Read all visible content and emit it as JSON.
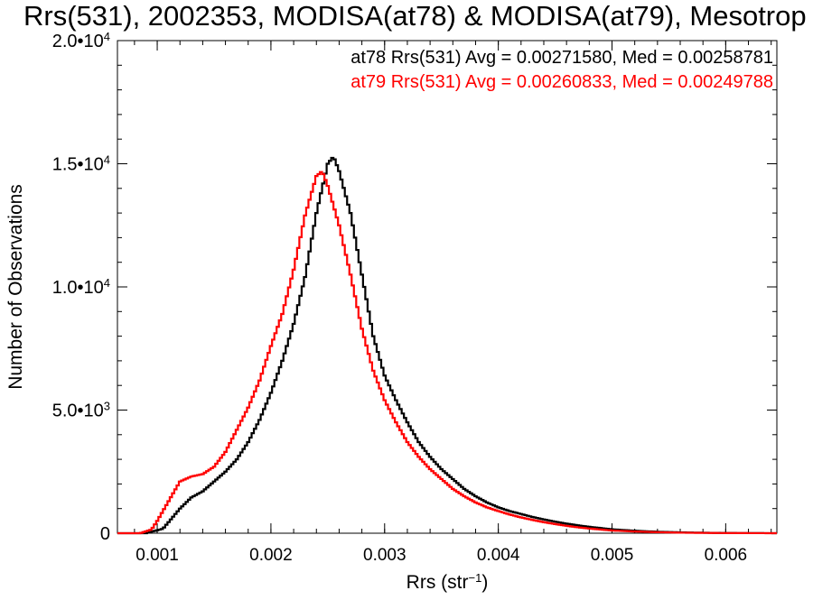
{
  "chart_data": {
    "type": "line",
    "step": true,
    "title": "Rrs(531), 2002353, MODISA(at78) & MODISA(at79), Mesotrop",
    "xlabel_main": "Rrs (str",
    "xlabel_sup": "−1",
    "xlabel_close": ")",
    "ylabel": "Number of Observations",
    "xlim": [
      0.00065,
      0.00645
    ],
    "ylim": [
      0,
      20000
    ],
    "x_ticks": [
      {
        "value": 0.001,
        "label": "0.001"
      },
      {
        "value": 0.002,
        "label": "0.002"
      },
      {
        "value": 0.003,
        "label": "0.003"
      },
      {
        "value": 0.004,
        "label": "0.004"
      },
      {
        "value": 0.005,
        "label": "0.005"
      },
      {
        "value": 0.006,
        "label": "0.006"
      }
    ],
    "y_ticks": [
      {
        "value": 0,
        "mant": "0",
        "exp": ""
      },
      {
        "value": 5000,
        "mant": "5.0•10",
        "exp": "3"
      },
      {
        "value": 10000,
        "mant": "1.0•10",
        "exp": "4"
      },
      {
        "value": 15000,
        "mant": "1.5•10",
        "exp": "4"
      },
      {
        "value": 20000,
        "mant": "2.0•10",
        "exp": "4"
      }
    ],
    "x_minor_step": 0.0002,
    "y_minor_step": 1000,
    "legend_position": "top-right",
    "annotations": [
      {
        "text": "at78 Rrs(531) Avg = 0.00271580, Med = 0.00258781",
        "color": "#000000"
      },
      {
        "text": "at79 Rrs(531) Avg = 0.00260833, Med = 0.00249788",
        "color": "#ff0000"
      }
    ],
    "series": [
      {
        "name": "at78",
        "color": "#000000",
        "points": [
          [
            0.00065,
            0
          ],
          [
            0.0009,
            0
          ],
          [
            0.00105,
            180
          ],
          [
            0.0011,
            450
          ],
          [
            0.0012,
            1000
          ],
          [
            0.0013,
            1450
          ],
          [
            0.0014,
            1700
          ],
          [
            0.0015,
            2100
          ],
          [
            0.0016,
            2500
          ],
          [
            0.0017,
            3000
          ],
          [
            0.0018,
            3700
          ],
          [
            0.0019,
            4600
          ],
          [
            0.002,
            5700
          ],
          [
            0.0021,
            7000
          ],
          [
            0.0022,
            8500
          ],
          [
            0.0023,
            10400
          ],
          [
            0.0024,
            13000
          ],
          [
            0.0025,
            15000
          ],
          [
            0.00255,
            15300
          ],
          [
            0.0026,
            14700
          ],
          [
            0.0027,
            13000
          ],
          [
            0.0028,
            10500
          ],
          [
            0.0029,
            8000
          ],
          [
            0.003,
            6400
          ],
          [
            0.0031,
            5400
          ],
          [
            0.0032,
            4500
          ],
          [
            0.0033,
            3700
          ],
          [
            0.0034,
            3100
          ],
          [
            0.0035,
            2600
          ],
          [
            0.0036,
            2200
          ],
          [
            0.0037,
            1800
          ],
          [
            0.0038,
            1500
          ],
          [
            0.0039,
            1250
          ],
          [
            0.004,
            1050
          ],
          [
            0.0041,
            900
          ],
          [
            0.0042,
            780
          ],
          [
            0.0043,
            660
          ],
          [
            0.0044,
            560
          ],
          [
            0.0045,
            470
          ],
          [
            0.0046,
            390
          ],
          [
            0.0047,
            320
          ],
          [
            0.0048,
            260
          ],
          [
            0.0049,
            210
          ],
          [
            0.005,
            160
          ],
          [
            0.0052,
            100
          ],
          [
            0.0054,
            60
          ],
          [
            0.0056,
            35
          ],
          [
            0.0058,
            20
          ],
          [
            0.006,
            10
          ],
          [
            0.0062,
            5
          ],
          [
            0.0064,
            2
          ],
          [
            0.00645,
            0
          ]
        ]
      },
      {
        "name": "at79",
        "color": "#ff0000",
        "points": [
          [
            0.00065,
            0
          ],
          [
            0.00085,
            0
          ],
          [
            0.00095,
            150
          ],
          [
            0.001,
            500
          ],
          [
            0.0011,
            1300
          ],
          [
            0.0012,
            2100
          ],
          [
            0.0013,
            2300
          ],
          [
            0.0014,
            2400
          ],
          [
            0.0015,
            2700
          ],
          [
            0.0016,
            3300
          ],
          [
            0.0017,
            4200
          ],
          [
            0.0018,
            5100
          ],
          [
            0.0019,
            6200
          ],
          [
            0.002,
            7600
          ],
          [
            0.0021,
            8900
          ],
          [
            0.0022,
            10700
          ],
          [
            0.0023,
            12900
          ],
          [
            0.0024,
            14500
          ],
          [
            0.00245,
            14700
          ],
          [
            0.0025,
            14100
          ],
          [
            0.0026,
            12500
          ],
          [
            0.0027,
            10500
          ],
          [
            0.0028,
            8300
          ],
          [
            0.0029,
            6600
          ],
          [
            0.003,
            5400
          ],
          [
            0.0031,
            4500
          ],
          [
            0.0032,
            3700
          ],
          [
            0.0033,
            3100
          ],
          [
            0.0034,
            2600
          ],
          [
            0.0035,
            2200
          ],
          [
            0.0036,
            1800
          ],
          [
            0.0037,
            1500
          ],
          [
            0.0038,
            1250
          ],
          [
            0.0039,
            1050
          ],
          [
            0.004,
            900
          ],
          [
            0.0041,
            760
          ],
          [
            0.0042,
            640
          ],
          [
            0.0043,
            540
          ],
          [
            0.0044,
            450
          ],
          [
            0.0045,
            370
          ],
          [
            0.0046,
            300
          ],
          [
            0.0047,
            240
          ],
          [
            0.0048,
            190
          ],
          [
            0.0049,
            150
          ],
          [
            0.005,
            110
          ],
          [
            0.0052,
            70
          ],
          [
            0.0054,
            40
          ],
          [
            0.0056,
            22
          ],
          [
            0.0058,
            12
          ],
          [
            0.006,
            6
          ],
          [
            0.0062,
            3
          ],
          [
            0.00645,
            0
          ]
        ]
      }
    ]
  }
}
